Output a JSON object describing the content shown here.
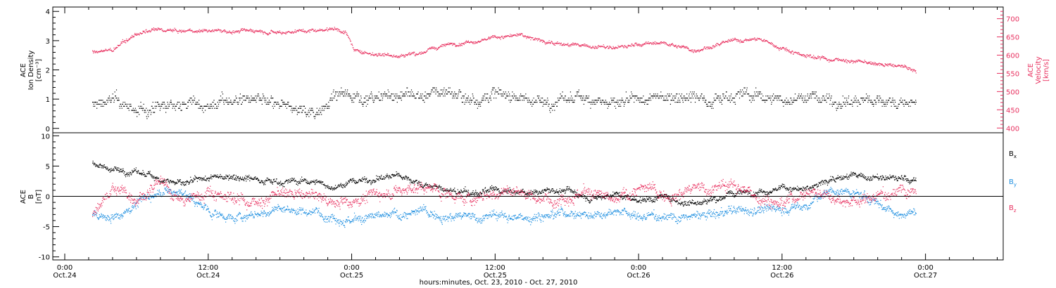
{
  "colors": {
    "black": "#000000",
    "red": "#e8305f",
    "blue": "#1f8fe0",
    "axis": "#000000"
  },
  "labels": {
    "top_left_y": [
      "ACE",
      "Ion Density",
      "[cm⁻³]"
    ],
    "top_right_y": [
      "ACE",
      "Velocity",
      "[km/s]"
    ],
    "bottom_y": [
      "ACE",
      "B",
      "[nT]"
    ],
    "legend": [
      {
        "text": "Bx",
        "base": "B",
        "sub": "x",
        "color": "#000000"
      },
      {
        "text": "By",
        "base": "B",
        "sub": "y",
        "color": "#1f8fe0"
      },
      {
        "text": "Bz",
        "base": "B",
        "sub": "z",
        "color": "#e8305f"
      }
    ],
    "xlabel": "hours:minutes, Oct. 23, 2010 - Oct. 27, 2010"
  },
  "x_ticks": [
    {
      "time": "0:00",
      "date": "Oct.24",
      "hours": 0
    },
    {
      "time": "12:00",
      "date": "Oct.24",
      "hours": 12
    },
    {
      "time": "0:00",
      "date": "Oct.25",
      "hours": 24
    },
    {
      "time": "12:00",
      "date": "Oct.25",
      "hours": 36
    },
    {
      "time": "0:00",
      "date": "Oct.26",
      "hours": 48
    },
    {
      "time": "12:00",
      "date": "Oct.26",
      "hours": 60
    },
    {
      "time": "0:00",
      "date": "Oct.27",
      "hours": 72
    }
  ],
  "chart_data": [
    {
      "type": "scatter",
      "panel": "top",
      "xlabel": "",
      "x_range_hours": [
        -1.0,
        78.5
      ],
      "left_axis": {
        "label": "ACE Ion Density [cm⁻³]",
        "range": [
          -0.15,
          4.15
        ],
        "ticks": [
          0,
          1,
          2,
          3,
          4
        ]
      },
      "right_axis": {
        "label": "ACE Velocity [km/s]",
        "range": [
          387,
          732
        ],
        "ticks": [
          400,
          450,
          500,
          550,
          600,
          650,
          700
        ]
      },
      "series": [
        {
          "name": "Ion Density",
          "color": "#000000",
          "axis": "left",
          "knots_hours": [
            2.3,
            4,
            6,
            8,
            10,
            12,
            14,
            16,
            18,
            21,
            22.5,
            24,
            26,
            28,
            30,
            32,
            34,
            36,
            38,
            40,
            42,
            44,
            46,
            48,
            50,
            52,
            54,
            56,
            58,
            60,
            62,
            64,
            66,
            68,
            70,
            71.2
          ],
          "knots_values": [
            0.8,
            1.0,
            0.6,
            0.7,
            0.9,
            0.8,
            1.0,
            1.0,
            0.7,
            0.6,
            1.1,
            1.2,
            1.0,
            1.2,
            1.1,
            1.3,
            1.0,
            1.2,
            1.1,
            0.9,
            1.0,
            1.1,
            0.8,
            0.9,
            1.1,
            1.2,
            1.0,
            1.2,
            1.1,
            1.0,
            1.1,
            1.0,
            0.9,
            1.0,
            0.9,
            0.8
          ],
          "spread": 0.55
        },
        {
          "name": "Velocity",
          "color": "#e8305f",
          "axis": "right",
          "knots_hours": [
            2.3,
            4,
            6,
            8,
            10,
            12,
            14,
            16,
            18,
            21,
            22.5,
            23.5,
            24.2,
            26,
            28,
            30,
            32,
            34,
            36,
            38,
            40,
            42,
            44,
            46,
            48,
            50,
            52,
            52.5,
            54,
            56,
            58,
            60,
            62,
            64,
            66,
            68,
            70,
            71.2
          ],
          "knots_values": [
            610,
            615,
            660,
            670,
            665,
            670,
            665,
            670,
            665,
            670,
            675,
            665,
            612,
            605,
            600,
            610,
            630,
            640,
            650,
            655,
            640,
            630,
            625,
            620,
            630,
            635,
            620,
            615,
            625,
            640,
            645,
            620,
            600,
            590,
            585,
            575,
            570,
            555
          ],
          "spread": 14
        }
      ]
    },
    {
      "type": "scatter",
      "panel": "bottom",
      "xlabel": "hours:minutes, Oct. 23, 2010 - Oct. 27, 2010",
      "x_range_hours": [
        -1.0,
        78.5
      ],
      "y_axis": {
        "label": "ACE B [nT]",
        "range": [
          -10.5,
          10.5
        ],
        "ticks": [
          -10,
          -5,
          0,
          5,
          10
        ]
      },
      "zero_line": true,
      "series": [
        {
          "name": "Bx",
          "color": "#000000",
          "knots_hours": [
            2.3,
            4,
            6,
            8,
            10,
            12,
            14,
            16,
            18,
            21,
            22.5,
            24,
            26,
            28,
            30,
            32,
            34,
            36,
            38,
            40,
            42,
            44,
            46,
            48,
            50,
            52,
            54,
            56,
            58,
            60,
            62,
            64,
            66,
            68,
            70,
            71.2
          ],
          "knots_values": [
            5.5,
            4.5,
            4.0,
            3.0,
            2.0,
            3.0,
            3.5,
            3.0,
            2.5,
            2.5,
            1.5,
            2.5,
            3.0,
            3.5,
            2.0,
            1.0,
            0.5,
            1.0,
            0.5,
            1.0,
            1.0,
            0.0,
            0.5,
            -0.5,
            0.0,
            -1.0,
            -0.5,
            0.5,
            1.0,
            1.5,
            1.0,
            3.0,
            3.5,
            3.0,
            3.0,
            2.5
          ],
          "spread": 1.4
        },
        {
          "name": "By",
          "color": "#1f8fe0",
          "knots_hours": [
            2.3,
            4,
            6,
            8,
            10,
            12,
            14,
            16,
            18,
            21,
            22.5,
            24,
            26,
            28,
            30,
            32,
            34,
            36,
            38,
            40,
            42,
            44,
            46,
            48,
            50,
            52,
            54,
            56,
            58,
            60,
            62,
            64,
            66,
            68,
            70,
            71.2
          ],
          "knots_values": [
            -3.0,
            -3.5,
            -1.0,
            1.0,
            0.5,
            -2.5,
            -3.5,
            -3.0,
            -2.0,
            -2.5,
            -3.0,
            -4.0,
            -3.5,
            -3.0,
            -2.5,
            -3.0,
            -3.5,
            -3.0,
            -3.5,
            -3.0,
            -2.5,
            -3.0,
            -2.0,
            -3.5,
            -3.0,
            -3.5,
            -3.0,
            -2.5,
            -2.0,
            -2.0,
            -1.5,
            1.0,
            0.5,
            -1.0,
            -3.0,
            -2.0
          ],
          "spread": 2.0
        },
        {
          "name": "Bz",
          "color": "#e8305f",
          "knots_hours": [
            2.3,
            4,
            6,
            8,
            10,
            12,
            14,
            16,
            18,
            21,
            22.5,
            24,
            26,
            28,
            30,
            32,
            34,
            36,
            38,
            40,
            42,
            44,
            46,
            48,
            50,
            52,
            54,
            56,
            58,
            60,
            62,
            64,
            66,
            68,
            70,
            71.2
          ],
          "knots_values": [
            -3.0,
            1.5,
            0.0,
            2.0,
            -1.0,
            1.0,
            0.0,
            -1.0,
            0.5,
            0.0,
            -1.0,
            -0.5,
            0.5,
            1.0,
            1.5,
            0.5,
            -0.5,
            0.5,
            1.0,
            -0.5,
            0.5,
            0.5,
            -1.0,
            1.5,
            0.5,
            1.0,
            1.5,
            2.0,
            0.0,
            -1.0,
            1.0,
            0.5,
            -1.0,
            0.0,
            1.5,
            0.5
          ],
          "spread": 2.6
        }
      ]
    }
  ]
}
